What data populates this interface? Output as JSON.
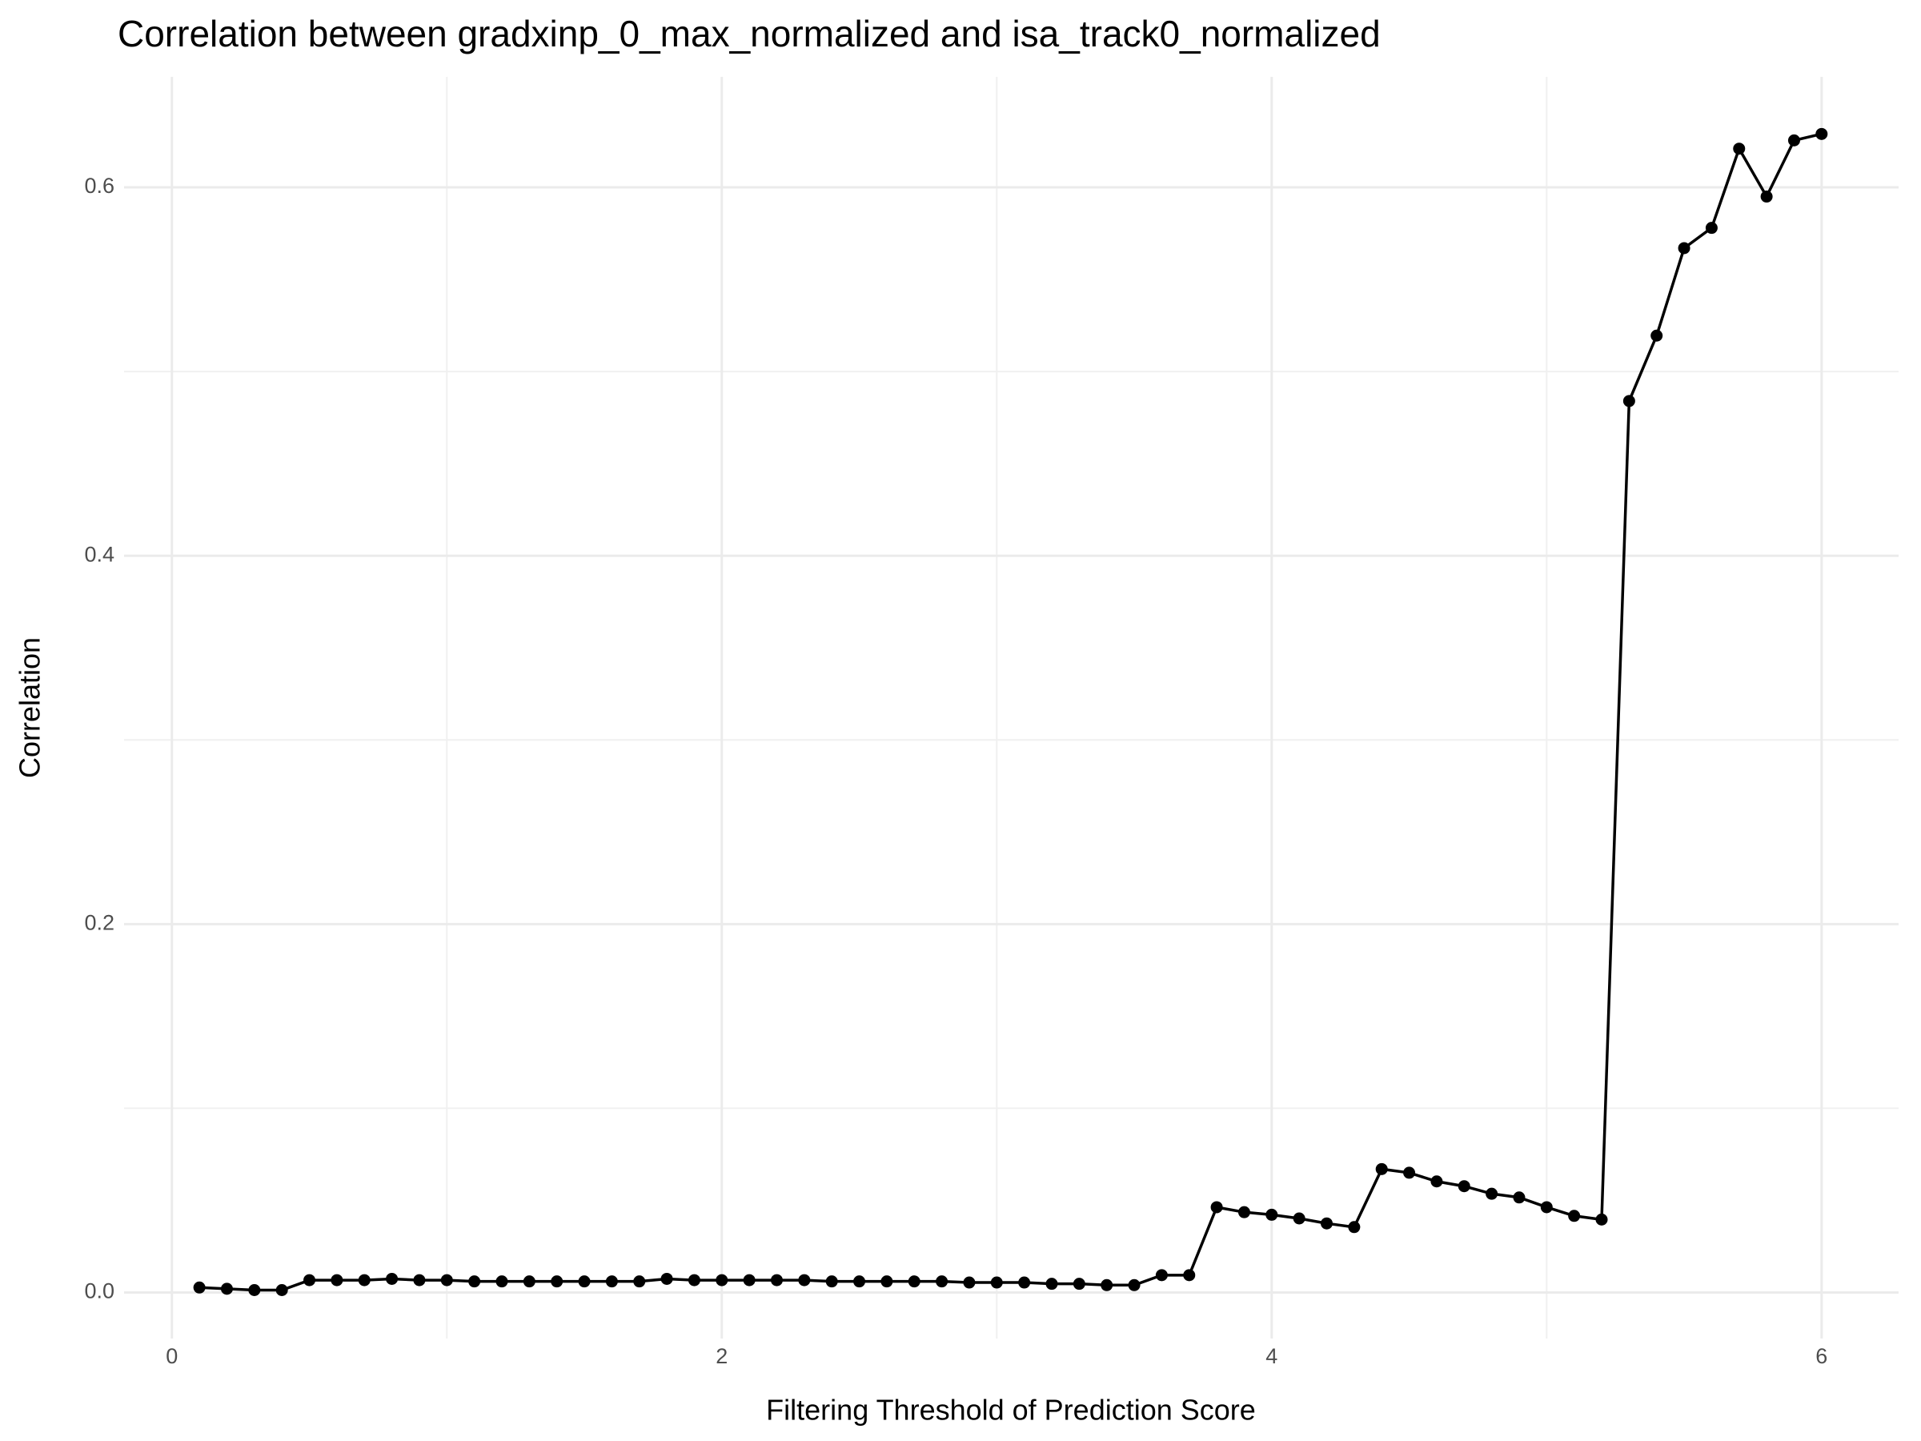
{
  "chart_data": {
    "type": "line",
    "title": "Correlation between gradxinp_0_max_normalized and isa_track0_normalized",
    "x_label": "Filtering Threshold of Prediction Score",
    "y_label": "Correlation",
    "x": [
      0.1,
      0.2,
      0.3,
      0.4,
      0.5,
      0.6,
      0.7,
      0.8,
      0.9,
      1.0,
      1.1,
      1.2,
      1.3,
      1.4,
      1.5,
      1.6,
      1.7,
      1.8,
      1.9,
      2.0,
      2.1,
      2.2,
      2.3,
      2.4,
      2.5,
      2.6,
      2.7,
      2.8,
      2.9,
      3.0,
      3.1,
      3.2,
      3.3,
      3.4,
      3.5,
      3.6,
      3.7,
      3.8,
      3.9,
      4.0,
      4.1,
      4.2,
      4.3,
      4.4,
      4.5,
      4.6,
      4.7,
      4.8,
      4.9,
      5.0,
      5.1,
      5.2,
      5.3,
      5.4,
      5.5,
      5.6,
      5.7,
      5.8,
      5.9,
      6.0
    ],
    "series": [
      {
        "color": "#000000",
        "values": [
          0.0027,
          0.002,
          0.0013,
          0.0013,
          0.0067,
          0.0067,
          0.0067,
          0.0074,
          0.0067,
          0.0067,
          0.006,
          0.006,
          0.006,
          0.006,
          0.006,
          0.006,
          0.006,
          0.0074,
          0.0067,
          0.0067,
          0.0067,
          0.0067,
          0.0067,
          0.006,
          0.006,
          0.006,
          0.006,
          0.006,
          0.0054,
          0.0054,
          0.0054,
          0.0047,
          0.0047,
          0.004,
          0.004,
          0.0094,
          0.0094,
          0.0463,
          0.0436,
          0.0422,
          0.0402,
          0.0375,
          0.0355,
          0.067,
          0.065,
          0.0603,
          0.0577,
          0.0536,
          0.0516,
          0.0463,
          0.0416,
          0.0396,
          0.484,
          0.5195,
          0.567,
          0.578,
          0.621,
          0.595,
          0.6255,
          0.629
        ]
      }
    ],
    "xlim": [
      -0.174,
      6.28
    ],
    "ylim": [
      -0.025,
      0.66
    ],
    "xticks": [
      0,
      2,
      4,
      6
    ],
    "yticks": [
      {
        "value": 0,
        "label": "0.0"
      },
      0.2,
      0.4,
      0.6
    ],
    "minor_xticks": [
      1,
      3,
      5
    ],
    "minor_yticks": [
      0.1,
      0.3,
      0.5
    ],
    "grid": true
  }
}
